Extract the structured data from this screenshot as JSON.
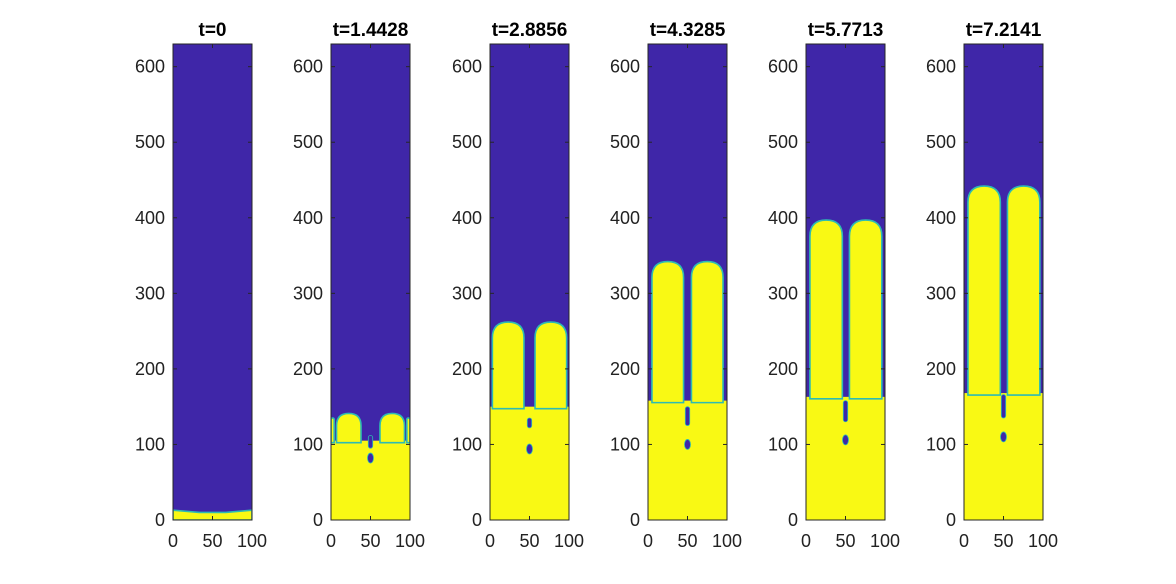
{
  "chart_data": [
    {
      "type": "heatmap",
      "title": "t=0",
      "xlim": [
        0,
        100
      ],
      "ylim": [
        0,
        630
      ],
      "xticks": [
        "0",
        "50",
        "100"
      ],
      "yticks": [
        "0",
        "100",
        "200",
        "300",
        "400",
        "500",
        "600"
      ],
      "interface": {
        "heights": [
          13,
          12,
          11,
          10,
          10,
          10,
          10,
          11,
          12,
          13
        ]
      },
      "colors": {
        "low": "#3f26a8",
        "high": "#f9f914",
        "edge": "#2dbbb3"
      }
    },
    {
      "type": "heatmap",
      "title": "t=1.4428",
      "xlim": [
        0,
        100
      ],
      "ylim": [
        0,
        630
      ],
      "xticks": [
        "0",
        "50",
        "100"
      ],
      "yticks": [
        "0",
        "100",
        "200",
        "300",
        "400",
        "500",
        "600"
      ],
      "interface": {
        "fingers": [
          {
            "x0": 0,
            "x1": 4,
            "top": 135
          },
          {
            "x0": 7,
            "x1": 38,
            "top": 141
          },
          {
            "x0": 62,
            "x1": 93,
            "top": 141
          },
          {
            "x0": 96,
            "x1": 100,
            "top": 135
          }
        ],
        "stem": {
          "x": 50,
          "top": 112,
          "bottom": 95
        },
        "drops": [
          {
            "x": 50,
            "y": 82
          }
        ]
      },
      "colors": {
        "low": "#3f26a8",
        "high": "#f9f914",
        "edge": "#2dbbb3"
      }
    },
    {
      "type": "heatmap",
      "title": "t=2.8856",
      "xlim": [
        0,
        100
      ],
      "ylim": [
        0,
        630
      ],
      "xticks": [
        "0",
        "50",
        "100"
      ],
      "yticks": [
        "0",
        "100",
        "200",
        "300",
        "400",
        "500",
        "600"
      ],
      "interface": {
        "fingers": [
          {
            "x0": 3,
            "x1": 43,
            "top": 262
          },
          {
            "x0": 57,
            "x1": 97,
            "top": 262
          }
        ],
        "stem": {
          "x": 50,
          "top": 135,
          "bottom": 122
        },
        "drops": [
          {
            "x": 50,
            "y": 94
          }
        ],
        "side_level": 150
      },
      "colors": {
        "low": "#3f26a8",
        "high": "#f9f914",
        "edge": "#2dbbb3"
      }
    },
    {
      "type": "heatmap",
      "title": "t=4.3285",
      "xlim": [
        0,
        100
      ],
      "ylim": [
        0,
        630
      ],
      "xticks": [
        "0",
        "50",
        "100"
      ],
      "yticks": [
        "0",
        "100",
        "200",
        "300",
        "400",
        "500",
        "600"
      ],
      "interface": {
        "fingers": [
          {
            "x0": 5,
            "x1": 45,
            "top": 342
          },
          {
            "x0": 55,
            "x1": 95,
            "top": 342
          }
        ],
        "stem": {
          "x": 50,
          "top": 150,
          "bottom": 125
        },
        "drops": [
          {
            "x": 50,
            "y": 100
          }
        ],
        "side_level": 158
      },
      "colors": {
        "low": "#3f26a8",
        "high": "#f9f914",
        "edge": "#2dbbb3"
      }
    },
    {
      "type": "heatmap",
      "title": "t=5.7713",
      "xlim": [
        0,
        100
      ],
      "ylim": [
        0,
        630
      ],
      "xticks": [
        "0",
        "50",
        "100"
      ],
      "yticks": [
        "0",
        "100",
        "200",
        "300",
        "400",
        "500",
        "600"
      ],
      "interface": {
        "fingers": [
          {
            "x0": 5,
            "x1": 46,
            "top": 397
          },
          {
            "x0": 55,
            "x1": 96,
            "top": 397
          }
        ],
        "stem": {
          "x": 50,
          "top": 158,
          "bottom": 130
        },
        "drops": [
          {
            "x": 50,
            "y": 106
          }
        ],
        "side_level": 163
      },
      "colors": {
        "low": "#3f26a8",
        "high": "#f9f914",
        "edge": "#2dbbb3"
      }
    },
    {
      "type": "heatmap",
      "title": "t=7.2141",
      "xlim": [
        0,
        100
      ],
      "ylim": [
        0,
        630
      ],
      "xticks": [
        "0",
        "50",
        "100"
      ],
      "yticks": [
        "0",
        "100",
        "200",
        "300",
        "400",
        "500",
        "600"
      ],
      "interface": {
        "fingers": [
          {
            "x0": 5,
            "x1": 46,
            "top": 442
          },
          {
            "x0": 55,
            "x1": 96,
            "top": 442
          }
        ],
        "stem": {
          "x": 50,
          "top": 166,
          "bottom": 135
        },
        "drops": [
          {
            "x": 50,
            "y": 110
          }
        ],
        "side_level": 168
      },
      "colors": {
        "low": "#3f26a8",
        "high": "#f9f914",
        "edge": "#2dbbb3"
      }
    }
  ]
}
